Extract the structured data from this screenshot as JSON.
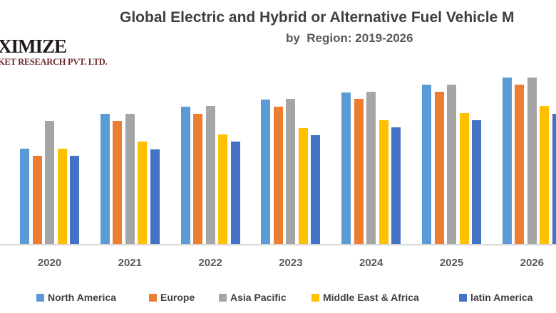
{
  "page": {
    "background": "#ffffff"
  },
  "logo": {
    "line1": "XIMIZE",
    "line2": "KET RESEARCH PVT. LTD.",
    "line1_color": "#1f1a17",
    "line2_color": "#6e2a2a"
  },
  "header": {
    "title": "Global Electric and Hybrid or Alternative Fuel Vehicle M",
    "subtitle": "by  Region: 2019-2026",
    "title_color": "#3f3f3f",
    "subtitle_color": "#595959"
  },
  "chart_data": {
    "type": "bar",
    "title": "Global Electric and Hybrid or Alternative Fuel Vehicle M",
    "subtitle": "by  Region: 2019-2026",
    "categories": [
      "2020",
      "2021",
      "2022",
      "2023",
      "2024",
      "2025",
      "2026"
    ],
    "series": [
      {
        "name": "North America",
        "color": "#5B9BD5",
        "values": [
          134,
          183,
          193,
          203,
          213,
          224,
          234
        ]
      },
      {
        "name": "Europe",
        "color": "#ED7D31",
        "values": [
          124,
          173,
          183,
          193,
          204,
          214,
          224
        ]
      },
      {
        "name": "Asia Pacific",
        "color": "#A5A5A5",
        "values": [
          173,
          183,
          194,
          204,
          214,
          224,
          234
        ]
      },
      {
        "name": "Middle East & Africa",
        "color": "#FFC000",
        "values": [
          134,
          144,
          154,
          163,
          174,
          184,
          194
        ]
      },
      {
        "name": "latin America",
        "color": "#4472C4",
        "values": [
          124,
          133,
          144,
          153,
          164,
          174,
          183
        ]
      }
    ],
    "xlabel": "",
    "ylabel": "",
    "value_units": "relative units (no y-axis or gridlines visible in image)",
    "ylim": [
      0,
      250
    ],
    "grid": false,
    "axis_visible": {
      "x": true,
      "y": false
    },
    "legend_position": "bottom",
    "crop_note": "2019 group from subtitle range is cropped off the left edge; last 2026 bar is clipped by the right edge"
  },
  "axis": {
    "line_color": "#d9d9d9",
    "tick_label_color": "#595959"
  },
  "legend": {
    "text_color": "#404040"
  }
}
